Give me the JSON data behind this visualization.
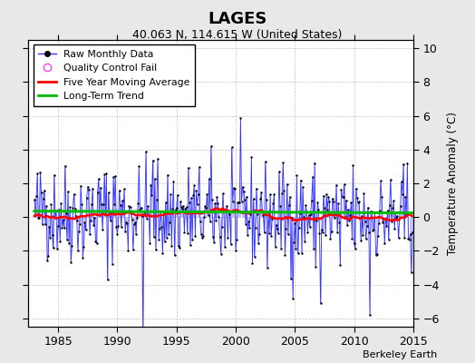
{
  "title": "LAGES",
  "subtitle": "40.063 N, 114.615 W (United States)",
  "ylabel": "Temperature Anomaly (°C)",
  "xlabel_note": "Berkeley Earth",
  "xlim": [
    1982.5,
    2015.0
  ],
  "ylim": [
    -6.5,
    10.5
  ],
  "yticks": [
    -6,
    -4,
    -2,
    0,
    2,
    4,
    6,
    8,
    10
  ],
  "xticks": [
    1985,
    1990,
    1995,
    2000,
    2005,
    2010,
    2015
  ],
  "raw_color": "#3333ff",
  "raw_fill": "#aaaaff",
  "ma_color": "#ff0000",
  "trend_color": "#00bb00",
  "qc_color": "#ff44ff",
  "fig_background": "#e8e8e8",
  "plot_background": "#ffffff",
  "seed": 42,
  "n_months": 384,
  "start_year": 1983.0
}
